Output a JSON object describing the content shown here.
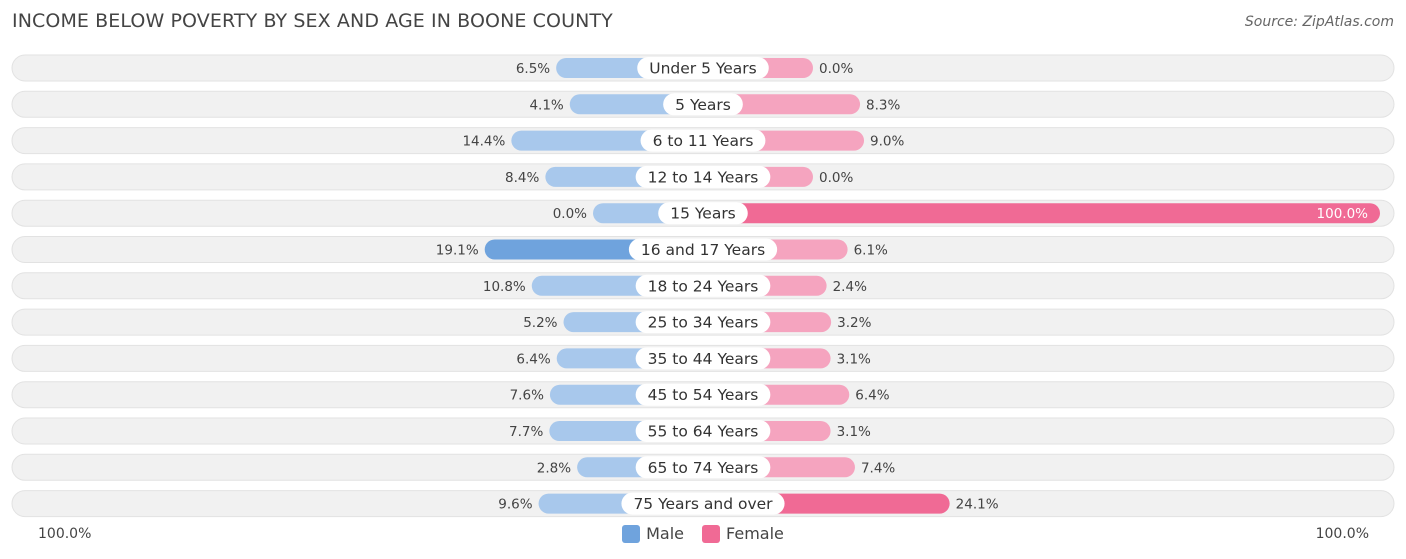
{
  "title": "INCOME BELOW POVERTY BY SEX AND AGE IN BOONE COUNTY",
  "source": "Source: ZipAtlas.com",
  "axis": {
    "left_label": "100.0%",
    "right_label": "100.0%"
  },
  "legend": {
    "male_label": "Male",
    "female_label": "Female"
  },
  "colors": {
    "male": "#6fa3dd",
    "male_light": "#a8c8ec",
    "female": "#f06a95",
    "female_light": "#f5a4bf",
    "row_bg": "#f1f1f1"
  },
  "chart_data": {
    "type": "bar",
    "title": "INCOME BELOW POVERTY BY SEX AND AGE IN BOONE COUNTY",
    "orientation": "diverging-horizontal",
    "categories": [
      "Under 5 Years",
      "5 Years",
      "6 to 11 Years",
      "12 to 14 Years",
      "15 Years",
      "16 and 17 Years",
      "18 to 24 Years",
      "25 to 34 Years",
      "35 to 44 Years",
      "45 to 54 Years",
      "55 to 64 Years",
      "65 to 74 Years",
      "75 Years and over"
    ],
    "series": [
      {
        "name": "Male",
        "values": [
          6.5,
          4.1,
          14.4,
          8.4,
          0.0,
          19.1,
          10.8,
          5.2,
          6.4,
          7.6,
          7.7,
          2.8,
          9.6
        ],
        "labels": [
          "6.5%",
          "4.1%",
          "14.4%",
          "8.4%",
          "0.0%",
          "19.1%",
          "10.8%",
          "5.2%",
          "6.4%",
          "7.6%",
          "7.7%",
          "2.8%",
          "9.6%"
        ]
      },
      {
        "name": "Female",
        "values": [
          0.0,
          8.3,
          9.0,
          0.0,
          100.0,
          6.1,
          2.4,
          3.2,
          3.1,
          6.4,
          3.1,
          7.4,
          24.1
        ],
        "labels": [
          "0.0%",
          "8.3%",
          "9.0%",
          "0.0%",
          "100.0%",
          "6.1%",
          "2.4%",
          "3.2%",
          "3.1%",
          "6.4%",
          "3.1%",
          "7.4%",
          "24.1%"
        ]
      }
    ],
    "xlim": [
      -100,
      100
    ],
    "legend_position": "bottom-center"
  }
}
